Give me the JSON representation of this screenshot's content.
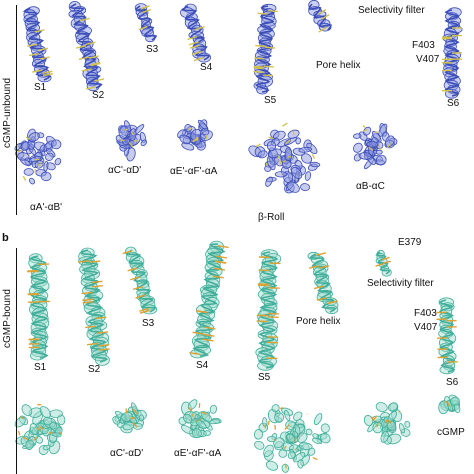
{
  "panel_a": {
    "side_label": "cGMP-unbound",
    "labels": {
      "s1": "S1",
      "s2": "S2",
      "s3": "S3",
      "s4": "S4",
      "s5": "S5",
      "s6": "S6",
      "pore_helix": "Pore helix",
      "selectivity_filter": "Selectivity filter",
      "f403": "F403",
      "v407": "V407",
      "aA_aB": "αA'-αB'",
      "aC_aD": "αC'-αD'",
      "aE_aF_aA": "αE'-αF'-αA",
      "beta_roll": "β-Roll",
      "aB_aC": "αB-αC"
    },
    "colors": {
      "mesh": "#3b4db8",
      "mesh_light": "#8f9ae0",
      "stick": "#d4c24a"
    }
  },
  "panel_b": {
    "letter": "b",
    "side_label": "cGMP-bound",
    "labels": {
      "s1": "S1",
      "s2": "S2",
      "s3": "S3",
      "s4": "S4",
      "s5": "S5",
      "s6": "S6",
      "pore_helix": "Pore helix",
      "selectivity_filter": "Selectivity filter",
      "e379": "E379",
      "f403": "F403",
      "v407": "V407",
      "aC_aD": "αC'-αD'",
      "aE_aF_aA": "αE'-αF'-αA",
      "cgmp": "cGMP"
    },
    "colors": {
      "mesh": "#3fae9a",
      "mesh_light": "#9fdccd",
      "stick": "#e0a030"
    }
  }
}
